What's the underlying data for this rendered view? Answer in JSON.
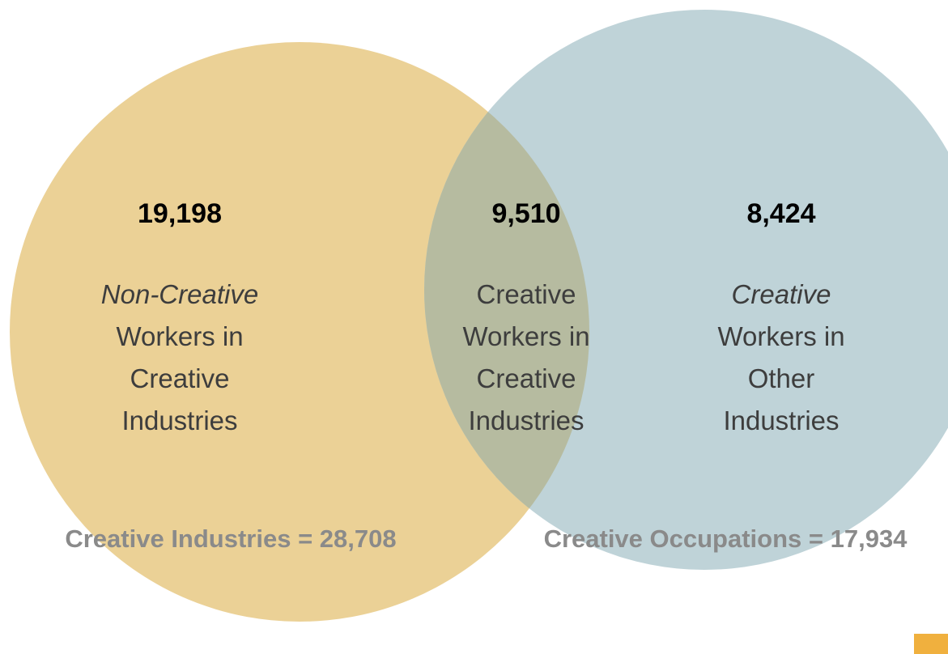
{
  "colors": {
    "left_circle": "#ebd196",
    "right_circle": "#bfd3d8",
    "overlap": "#b6bba0",
    "number_text": "#000000",
    "label_text": "#3d3d3d",
    "total_text": "#8a8a8a",
    "corner_accent": "#f0b03e"
  },
  "left": {
    "count": "19,198",
    "label_line1": "Non-Creative",
    "label_line2": "Workers in",
    "label_line3": "Creative",
    "label_line4": "Industries"
  },
  "overlap": {
    "count": "9,510",
    "label_line1": "Creative",
    "label_line2": "Workers in",
    "label_line3": "Creative",
    "label_line4": "Industries"
  },
  "right": {
    "count": "8,424",
    "label_line1": "Creative",
    "label_line2": "Workers in",
    "label_line3": "Other",
    "label_line4": "Industries"
  },
  "totals": {
    "creative_industries": "Creative Industries = 28,708",
    "creative_occupations": "Creative Occupations = 17,934"
  }
}
